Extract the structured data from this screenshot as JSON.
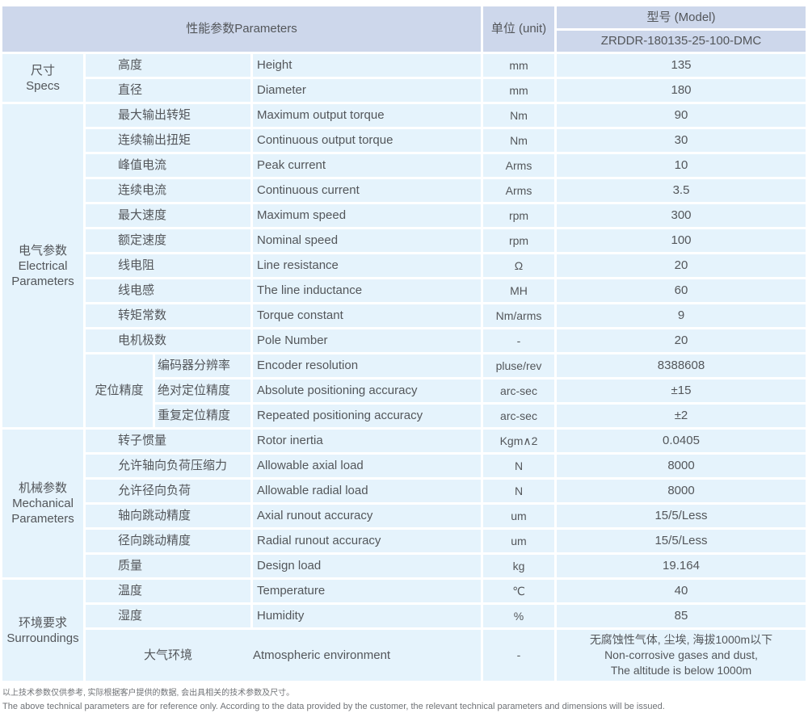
{
  "table": {
    "header": {
      "parameters": "性能参数Parameters",
      "unit": "单位 (unit)",
      "model_label": "型号 (Model)",
      "model_value": "ZRDDR-180135-25-100-DMC"
    },
    "sections": {
      "specs": {
        "cn": "尺寸",
        "en": "Specs"
      },
      "electrical": {
        "cn": "电气参数",
        "en1": "Electrical",
        "en2": "Parameters"
      },
      "mechanical": {
        "cn": "机械参数",
        "en1": "Mechanical",
        "en2": "Parameters"
      },
      "surroundings": {
        "cn": "环境要求",
        "en": "Surroundings"
      }
    },
    "positioning_group_label": "定位精度",
    "specs_rows": [
      {
        "cn": "高度",
        "en": "Height",
        "unit": "mm",
        "value": "135"
      },
      {
        "cn": "直径",
        "en": "Diameter",
        "unit": "mm",
        "value": "180"
      }
    ],
    "electrical_rows": [
      {
        "cn": "最大输出转矩",
        "en": "Maximum output torque",
        "unit": "Nm",
        "value": "90"
      },
      {
        "cn": "连续输出扭矩",
        "en": "Continuous output torque",
        "unit": "Nm",
        "value": "30"
      },
      {
        "cn": "峰值电流",
        "en": "Peak current",
        "unit": "Arms",
        "value": "10"
      },
      {
        "cn": "连续电流",
        "en": "Continuous current",
        "unit": "Arms",
        "value": "3.5"
      },
      {
        "cn": "最大速度",
        "en": "Maximum speed",
        "unit": "rpm",
        "value": "300"
      },
      {
        "cn": "额定速度",
        "en": "Nominal speed",
        "unit": "rpm",
        "value": "100"
      },
      {
        "cn": "线电阻",
        "en": "Line resistance",
        "unit": "Ω",
        "value": "20"
      },
      {
        "cn": "线电感",
        "en": "The line inductance",
        "unit": "MH",
        "value": "60"
      },
      {
        "cn": "转矩常数",
        "en": "Torque constant",
        "unit": "Nm/arms",
        "value": "9"
      },
      {
        "cn": "电机极数",
        "en": "Pole Number",
        "unit": "-",
        "value": "20"
      }
    ],
    "positioning_rows": [
      {
        "cn": "编码器分辨率",
        "en": "Encoder resolution",
        "unit": "pluse/rev",
        "value": "8388608"
      },
      {
        "cn": "绝对定位精度",
        "en": "Absolute positioning accuracy",
        "unit": "arc-sec",
        "value": "±15"
      },
      {
        "cn": "重复定位精度",
        "en": "Repeated positioning accuracy",
        "unit": "arc-sec",
        "value": "±2"
      }
    ],
    "mechanical_rows": [
      {
        "cn": "转子惯量",
        "en": "Rotor inertia",
        "unit": "Kgm∧2",
        "value": "0.0405"
      },
      {
        "cn": "允许轴向负荷压缩力",
        "en": "Allowable axial load",
        "unit": "N",
        "value": "8000"
      },
      {
        "cn": "允许径向负荷",
        "en": "Allowable radial load",
        "unit": "N",
        "value": "8000"
      },
      {
        "cn": "轴向跳动精度",
        "en": "Axial runout accuracy",
        "unit": "um",
        "value": "15/5/Less"
      },
      {
        "cn": "径向跳动精度",
        "en": "Radial runout accuracy",
        "unit": "um",
        "value": "15/5/Less"
      },
      {
        "cn": "质量",
        "en": "Design load",
        "unit": "kg",
        "value": "19.164"
      }
    ],
    "surroundings_rows": [
      {
        "cn": "温度",
        "en": "Temperature",
        "unit": "℃",
        "value": "40"
      },
      {
        "cn": "湿度",
        "en": "Humidity",
        "unit": "%",
        "value": "85"
      }
    ],
    "atmospheric_row": {
      "cn": "大气环境",
      "en": "Atmospheric environment",
      "unit": "-",
      "value_line1": "无腐蚀性气体, 尘埃, 海拔1000m以下",
      "value_line2": "Non-corrosive gases and dust,",
      "value_line3": "The altitude is below 1000m"
    },
    "footnote": {
      "cn": "以上技术参数仅供参考, 实际根据客户提供的数据, 会出具相关的技术参数及尺寸。",
      "en": "The above technical parameters are for reference only. According to the data provided by the customer, the relevant technical parameters and dimensions will be issued."
    },
    "colors": {
      "header_bg": "#cdd7eb",
      "cell_bg": "#e5f3fc",
      "text": "#53565a"
    }
  }
}
